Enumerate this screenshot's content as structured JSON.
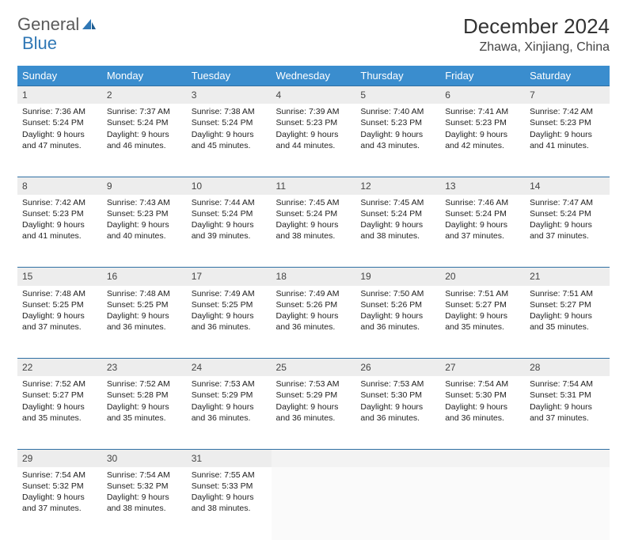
{
  "logo": {
    "text1": "General",
    "text2": "Blue"
  },
  "title": "December 2024",
  "location": "Zhawa, Xinjiang, China",
  "colors": {
    "header_bg": "#3a8dce",
    "header_text": "#ffffff",
    "daynum_bg": "#ededed",
    "rule": "#2f6fa3",
    "logo_gray": "#5a5a5a",
    "logo_blue": "#2f77b5"
  },
  "weekdays": [
    "Sunday",
    "Monday",
    "Tuesday",
    "Wednesday",
    "Thursday",
    "Friday",
    "Saturday"
  ],
  "weeks": [
    [
      {
        "day": "1",
        "sunrise": "Sunrise: 7:36 AM",
        "sunset": "Sunset: 5:24 PM",
        "daylight": "Daylight: 9 hours and 47 minutes."
      },
      {
        "day": "2",
        "sunrise": "Sunrise: 7:37 AM",
        "sunset": "Sunset: 5:24 PM",
        "daylight": "Daylight: 9 hours and 46 minutes."
      },
      {
        "day": "3",
        "sunrise": "Sunrise: 7:38 AM",
        "sunset": "Sunset: 5:24 PM",
        "daylight": "Daylight: 9 hours and 45 minutes."
      },
      {
        "day": "4",
        "sunrise": "Sunrise: 7:39 AM",
        "sunset": "Sunset: 5:23 PM",
        "daylight": "Daylight: 9 hours and 44 minutes."
      },
      {
        "day": "5",
        "sunrise": "Sunrise: 7:40 AM",
        "sunset": "Sunset: 5:23 PM",
        "daylight": "Daylight: 9 hours and 43 minutes."
      },
      {
        "day": "6",
        "sunrise": "Sunrise: 7:41 AM",
        "sunset": "Sunset: 5:23 PM",
        "daylight": "Daylight: 9 hours and 42 minutes."
      },
      {
        "day": "7",
        "sunrise": "Sunrise: 7:42 AM",
        "sunset": "Sunset: 5:23 PM",
        "daylight": "Daylight: 9 hours and 41 minutes."
      }
    ],
    [
      {
        "day": "8",
        "sunrise": "Sunrise: 7:42 AM",
        "sunset": "Sunset: 5:23 PM",
        "daylight": "Daylight: 9 hours and 41 minutes."
      },
      {
        "day": "9",
        "sunrise": "Sunrise: 7:43 AM",
        "sunset": "Sunset: 5:23 PM",
        "daylight": "Daylight: 9 hours and 40 minutes."
      },
      {
        "day": "10",
        "sunrise": "Sunrise: 7:44 AM",
        "sunset": "Sunset: 5:24 PM",
        "daylight": "Daylight: 9 hours and 39 minutes."
      },
      {
        "day": "11",
        "sunrise": "Sunrise: 7:45 AM",
        "sunset": "Sunset: 5:24 PM",
        "daylight": "Daylight: 9 hours and 38 minutes."
      },
      {
        "day": "12",
        "sunrise": "Sunrise: 7:45 AM",
        "sunset": "Sunset: 5:24 PM",
        "daylight": "Daylight: 9 hours and 38 minutes."
      },
      {
        "day": "13",
        "sunrise": "Sunrise: 7:46 AM",
        "sunset": "Sunset: 5:24 PM",
        "daylight": "Daylight: 9 hours and 37 minutes."
      },
      {
        "day": "14",
        "sunrise": "Sunrise: 7:47 AM",
        "sunset": "Sunset: 5:24 PM",
        "daylight": "Daylight: 9 hours and 37 minutes."
      }
    ],
    [
      {
        "day": "15",
        "sunrise": "Sunrise: 7:48 AM",
        "sunset": "Sunset: 5:25 PM",
        "daylight": "Daylight: 9 hours and 37 minutes."
      },
      {
        "day": "16",
        "sunrise": "Sunrise: 7:48 AM",
        "sunset": "Sunset: 5:25 PM",
        "daylight": "Daylight: 9 hours and 36 minutes."
      },
      {
        "day": "17",
        "sunrise": "Sunrise: 7:49 AM",
        "sunset": "Sunset: 5:25 PM",
        "daylight": "Daylight: 9 hours and 36 minutes."
      },
      {
        "day": "18",
        "sunrise": "Sunrise: 7:49 AM",
        "sunset": "Sunset: 5:26 PM",
        "daylight": "Daylight: 9 hours and 36 minutes."
      },
      {
        "day": "19",
        "sunrise": "Sunrise: 7:50 AM",
        "sunset": "Sunset: 5:26 PM",
        "daylight": "Daylight: 9 hours and 36 minutes."
      },
      {
        "day": "20",
        "sunrise": "Sunrise: 7:51 AM",
        "sunset": "Sunset: 5:27 PM",
        "daylight": "Daylight: 9 hours and 35 minutes."
      },
      {
        "day": "21",
        "sunrise": "Sunrise: 7:51 AM",
        "sunset": "Sunset: 5:27 PM",
        "daylight": "Daylight: 9 hours and 35 minutes."
      }
    ],
    [
      {
        "day": "22",
        "sunrise": "Sunrise: 7:52 AM",
        "sunset": "Sunset: 5:27 PM",
        "daylight": "Daylight: 9 hours and 35 minutes."
      },
      {
        "day": "23",
        "sunrise": "Sunrise: 7:52 AM",
        "sunset": "Sunset: 5:28 PM",
        "daylight": "Daylight: 9 hours and 35 minutes."
      },
      {
        "day": "24",
        "sunrise": "Sunrise: 7:53 AM",
        "sunset": "Sunset: 5:29 PM",
        "daylight": "Daylight: 9 hours and 36 minutes."
      },
      {
        "day": "25",
        "sunrise": "Sunrise: 7:53 AM",
        "sunset": "Sunset: 5:29 PM",
        "daylight": "Daylight: 9 hours and 36 minutes."
      },
      {
        "day": "26",
        "sunrise": "Sunrise: 7:53 AM",
        "sunset": "Sunset: 5:30 PM",
        "daylight": "Daylight: 9 hours and 36 minutes."
      },
      {
        "day": "27",
        "sunrise": "Sunrise: 7:54 AM",
        "sunset": "Sunset: 5:30 PM",
        "daylight": "Daylight: 9 hours and 36 minutes."
      },
      {
        "day": "28",
        "sunrise": "Sunrise: 7:54 AM",
        "sunset": "Sunset: 5:31 PM",
        "daylight": "Daylight: 9 hours and 37 minutes."
      }
    ],
    [
      {
        "day": "29",
        "sunrise": "Sunrise: 7:54 AM",
        "sunset": "Sunset: 5:32 PM",
        "daylight": "Daylight: 9 hours and 37 minutes."
      },
      {
        "day": "30",
        "sunrise": "Sunrise: 7:54 AM",
        "sunset": "Sunset: 5:32 PM",
        "daylight": "Daylight: 9 hours and 38 minutes."
      },
      {
        "day": "31",
        "sunrise": "Sunrise: 7:55 AM",
        "sunset": "Sunset: 5:33 PM",
        "daylight": "Daylight: 9 hours and 38 minutes."
      },
      null,
      null,
      null,
      null
    ]
  ]
}
